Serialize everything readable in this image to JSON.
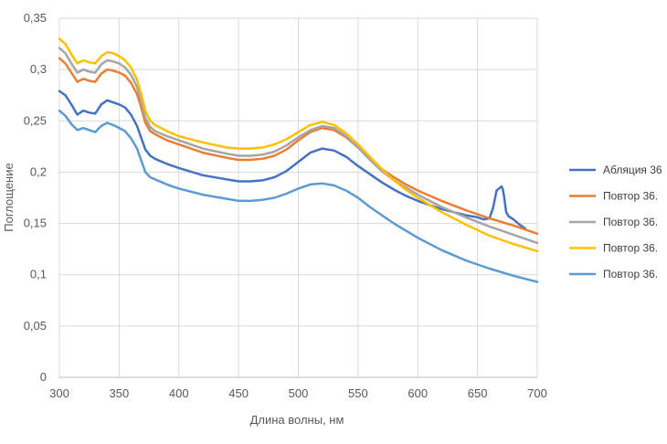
{
  "chart_data": {
    "type": "line",
    "title": "",
    "xlabel": "Длина волны, нм",
    "ylabel": "Поглощение",
    "xlim": [
      300,
      700
    ],
    "ylim": [
      0,
      0.35
    ],
    "x_ticks": [
      "300",
      "350",
      "400",
      "450",
      "500",
      "550",
      "600",
      "650",
      "700"
    ],
    "y_ticks": [
      "0",
      "0,05",
      "0,1",
      "0,15",
      "0,2",
      "0,25",
      "0,3",
      "0,35"
    ],
    "grid": true,
    "legend_position": "right",
    "series": [
      {
        "name": "Абляция 36",
        "color": "#4472C4",
        "points": [
          [
            300,
            0.279
          ],
          [
            305,
            0.275
          ],
          [
            310,
            0.266
          ],
          [
            315,
            0.256
          ],
          [
            320,
            0.26
          ],
          [
            325,
            0.258
          ],
          [
            330,
            0.257
          ],
          [
            335,
            0.266
          ],
          [
            340,
            0.27
          ],
          [
            345,
            0.268
          ],
          [
            350,
            0.266
          ],
          [
            355,
            0.263
          ],
          [
            360,
            0.256
          ],
          [
            365,
            0.245
          ],
          [
            368,
            0.235
          ],
          [
            372,
            0.222
          ],
          [
            376,
            0.216
          ],
          [
            380,
            0.213
          ],
          [
            390,
            0.208
          ],
          [
            400,
            0.204
          ],
          [
            420,
            0.197
          ],
          [
            440,
            0.193
          ],
          [
            450,
            0.191
          ],
          [
            460,
            0.191
          ],
          [
            470,
            0.192
          ],
          [
            480,
            0.195
          ],
          [
            490,
            0.201
          ],
          [
            500,
            0.21
          ],
          [
            510,
            0.219
          ],
          [
            520,
            0.223
          ],
          [
            530,
            0.221
          ],
          [
            540,
            0.215
          ],
          [
            550,
            0.206
          ],
          [
            560,
            0.198
          ],
          [
            570,
            0.19
          ],
          [
            580,
            0.183
          ],
          [
            590,
            0.177
          ],
          [
            600,
            0.172
          ],
          [
            610,
            0.168
          ],
          [
            620,
            0.164
          ],
          [
            630,
            0.161
          ],
          [
            640,
            0.158
          ],
          [
            650,
            0.156
          ],
          [
            655,
            0.154
          ],
          [
            660,
            0.155
          ],
          [
            663,
            0.165
          ],
          [
            666,
            0.182
          ],
          [
            668,
            0.184
          ],
          [
            670,
            0.186
          ],
          [
            671,
            0.184
          ],
          [
            672,
            0.178
          ],
          [
            674,
            0.161
          ],
          [
            676,
            0.157
          ],
          [
            680,
            0.154
          ],
          [
            685,
            0.149
          ],
          [
            690,
            0.145
          ]
        ]
      },
      {
        "name": "Повтор 36.",
        "color": "#ED7D31",
        "points": [
          [
            300,
            0.311
          ],
          [
            305,
            0.306
          ],
          [
            310,
            0.297
          ],
          [
            315,
            0.288
          ],
          [
            320,
            0.291
          ],
          [
            325,
            0.289
          ],
          [
            330,
            0.288
          ],
          [
            335,
            0.296
          ],
          [
            340,
            0.3
          ],
          [
            345,
            0.299
          ],
          [
            350,
            0.297
          ],
          [
            355,
            0.294
          ],
          [
            360,
            0.287
          ],
          [
            365,
            0.276
          ],
          [
            368,
            0.265
          ],
          [
            372,
            0.248
          ],
          [
            376,
            0.24
          ],
          [
            380,
            0.237
          ],
          [
            390,
            0.231
          ],
          [
            400,
            0.227
          ],
          [
            420,
            0.219
          ],
          [
            440,
            0.214
          ],
          [
            450,
            0.212
          ],
          [
            460,
            0.212
          ],
          [
            470,
            0.213
          ],
          [
            480,
            0.216
          ],
          [
            490,
            0.222
          ],
          [
            500,
            0.231
          ],
          [
            510,
            0.239
          ],
          [
            520,
            0.243
          ],
          [
            530,
            0.241
          ],
          [
            540,
            0.234
          ],
          [
            550,
            0.224
          ],
          [
            560,
            0.213
          ],
          [
            570,
            0.203
          ],
          [
            580,
            0.195
          ],
          [
            590,
            0.188
          ],
          [
            600,
            0.182
          ],
          [
            620,
            0.172
          ],
          [
            640,
            0.163
          ],
          [
            660,
            0.155
          ],
          [
            680,
            0.148
          ],
          [
            700,
            0.14
          ]
        ]
      },
      {
        "name": "Повтор 36.",
        "color": "#A5A5A5",
        "points": [
          [
            300,
            0.321
          ],
          [
            305,
            0.316
          ],
          [
            310,
            0.306
          ],
          [
            315,
            0.297
          ],
          [
            320,
            0.3
          ],
          [
            325,
            0.298
          ],
          [
            330,
            0.297
          ],
          [
            335,
            0.305
          ],
          [
            340,
            0.309
          ],
          [
            345,
            0.308
          ],
          [
            350,
            0.306
          ],
          [
            355,
            0.302
          ],
          [
            360,
            0.295
          ],
          [
            365,
            0.283
          ],
          [
            368,
            0.271
          ],
          [
            372,
            0.253
          ],
          [
            376,
            0.244
          ],
          [
            380,
            0.24
          ],
          [
            390,
            0.235
          ],
          [
            400,
            0.231
          ],
          [
            420,
            0.223
          ],
          [
            440,
            0.218
          ],
          [
            450,
            0.216
          ],
          [
            460,
            0.216
          ],
          [
            470,
            0.217
          ],
          [
            480,
            0.22
          ],
          [
            490,
            0.226
          ],
          [
            500,
            0.234
          ],
          [
            510,
            0.241
          ],
          [
            520,
            0.245
          ],
          [
            530,
            0.243
          ],
          [
            540,
            0.235
          ],
          [
            550,
            0.224
          ],
          [
            560,
            0.212
          ],
          [
            570,
            0.201
          ],
          [
            580,
            0.192
          ],
          [
            590,
            0.185
          ],
          [
            600,
            0.178
          ],
          [
            620,
            0.166
          ],
          [
            640,
            0.156
          ],
          [
            660,
            0.147
          ],
          [
            680,
            0.139
          ],
          [
            700,
            0.131
          ]
        ]
      },
      {
        "name": "Повтор 36.",
        "color": "#FFC000",
        "points": [
          [
            300,
            0.33
          ],
          [
            305,
            0.325
          ],
          [
            310,
            0.315
          ],
          [
            315,
            0.306
          ],
          [
            320,
            0.309
          ],
          [
            325,
            0.307
          ],
          [
            330,
            0.306
          ],
          [
            335,
            0.313
          ],
          [
            340,
            0.317
          ],
          [
            345,
            0.316
          ],
          [
            350,
            0.313
          ],
          [
            355,
            0.309
          ],
          [
            360,
            0.302
          ],
          [
            365,
            0.29
          ],
          [
            368,
            0.278
          ],
          [
            372,
            0.26
          ],
          [
            376,
            0.25
          ],
          [
            380,
            0.246
          ],
          [
            390,
            0.24
          ],
          [
            400,
            0.235
          ],
          [
            420,
            0.229
          ],
          [
            440,
            0.224
          ],
          [
            450,
            0.223
          ],
          [
            460,
            0.223
          ],
          [
            470,
            0.224
          ],
          [
            480,
            0.227
          ],
          [
            490,
            0.232
          ],
          [
            500,
            0.239
          ],
          [
            510,
            0.246
          ],
          [
            520,
            0.249
          ],
          [
            530,
            0.246
          ],
          [
            540,
            0.238
          ],
          [
            550,
            0.227
          ],
          [
            560,
            0.215
          ],
          [
            570,
            0.203
          ],
          [
            580,
            0.192
          ],
          [
            590,
            0.183
          ],
          [
            600,
            0.175
          ],
          [
            620,
            0.161
          ],
          [
            640,
            0.149
          ],
          [
            660,
            0.138
          ],
          [
            680,
            0.13
          ],
          [
            700,
            0.123
          ]
        ]
      },
      {
        "name": "Повтор 36.",
        "color": "#5B9BD5",
        "points": [
          [
            300,
            0.26
          ],
          [
            305,
            0.255
          ],
          [
            310,
            0.247
          ],
          [
            315,
            0.241
          ],
          [
            320,
            0.243
          ],
          [
            325,
            0.241
          ],
          [
            330,
            0.239
          ],
          [
            335,
            0.245
          ],
          [
            340,
            0.248
          ],
          [
            345,
            0.246
          ],
          [
            350,
            0.243
          ],
          [
            355,
            0.24
          ],
          [
            360,
            0.233
          ],
          [
            365,
            0.223
          ],
          [
            368,
            0.213
          ],
          [
            372,
            0.2
          ],
          [
            376,
            0.195
          ],
          [
            380,
            0.193
          ],
          [
            390,
            0.188
          ],
          [
            400,
            0.184
          ],
          [
            420,
            0.178
          ],
          [
            440,
            0.174
          ],
          [
            450,
            0.172
          ],
          [
            460,
            0.172
          ],
          [
            470,
            0.173
          ],
          [
            480,
            0.175
          ],
          [
            490,
            0.179
          ],
          [
            500,
            0.184
          ],
          [
            510,
            0.188
          ],
          [
            520,
            0.189
          ],
          [
            530,
            0.187
          ],
          [
            540,
            0.182
          ],
          [
            550,
            0.175
          ],
          [
            560,
            0.166
          ],
          [
            570,
            0.158
          ],
          [
            580,
            0.15
          ],
          [
            590,
            0.143
          ],
          [
            600,
            0.136
          ],
          [
            620,
            0.124
          ],
          [
            640,
            0.114
          ],
          [
            660,
            0.106
          ],
          [
            680,
            0.099
          ],
          [
            700,
            0.093
          ]
        ]
      }
    ]
  }
}
